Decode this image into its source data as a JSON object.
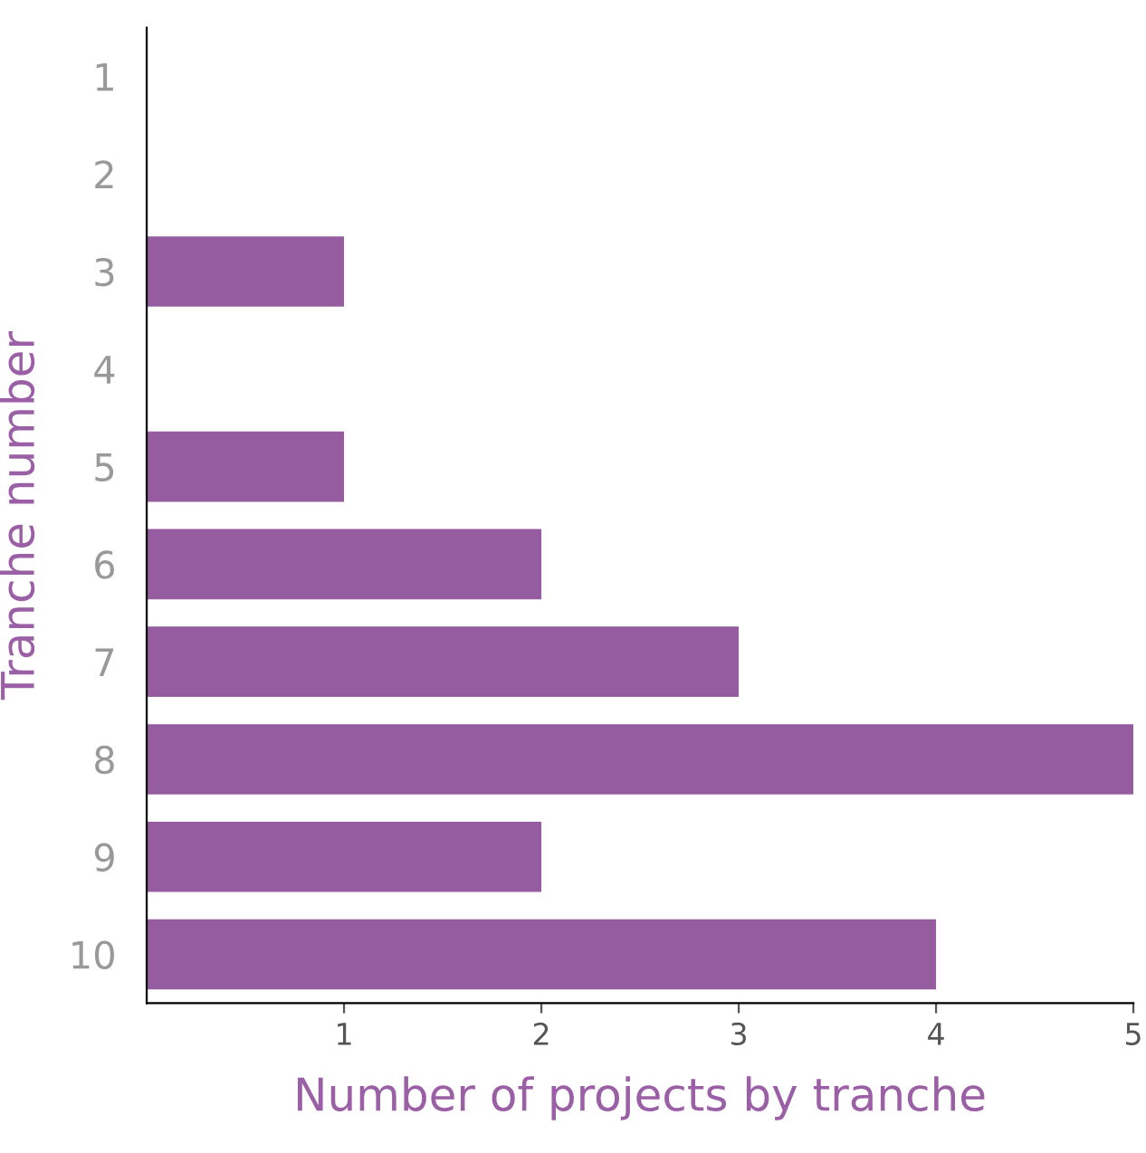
{
  "chart_data": {
    "type": "bar",
    "orientation": "horizontal",
    "xlabel": "Number of projects by tranche",
    "ylabel": "Tranche number",
    "categories": [
      "1",
      "2",
      "3",
      "4",
      "5",
      "6",
      "7",
      "8",
      "9",
      "10"
    ],
    "values": [
      0,
      0,
      1,
      0,
      1,
      2,
      3,
      5,
      2,
      4
    ],
    "color": "#955da0",
    "xlim": [
      0,
      5
    ],
    "xticks": [
      1,
      2,
      3,
      4,
      5
    ],
    "grid": false,
    "legend": false
  }
}
